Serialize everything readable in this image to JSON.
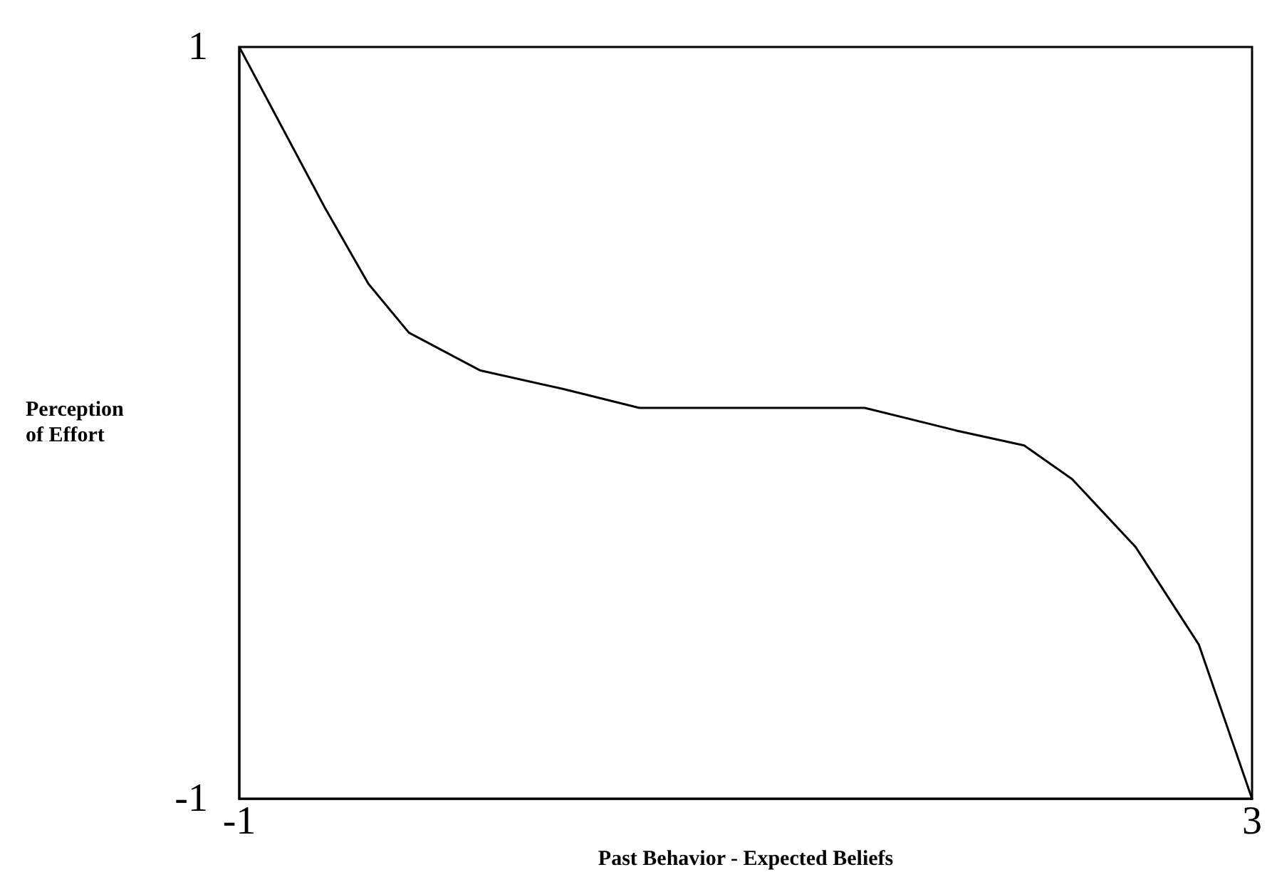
{
  "chart_data": {
    "type": "line",
    "xlabel": "Past Behavior - Expected Beliefs",
    "ylabel": "Perception\nof Effort",
    "xlim": [
      -1,
      3
    ],
    "xticks": [
      -1,
      3
    ],
    "ylim": [
      -1,
      1
    ],
    "yticks": [
      -1,
      1
    ],
    "grid": false,
    "marker": "none",
    "line_style": "solid",
    "series": [
      {
        "color": "#000000",
        "x": [
          -1,
          -0.66,
          -0.49,
          -0.33,
          -0.05,
          0.28,
          0.58,
          1.47,
          1.83,
          2.1,
          2.29,
          2.54,
          2.79,
          3
        ],
        "values": [
          1,
          0.57,
          0.37,
          0.24,
          0.14,
          0.09,
          0.04,
          0.04,
          -0.02,
          -0.06,
          -0.15,
          -0.33,
          -0.59,
          -1
        ]
      }
    ]
  }
}
